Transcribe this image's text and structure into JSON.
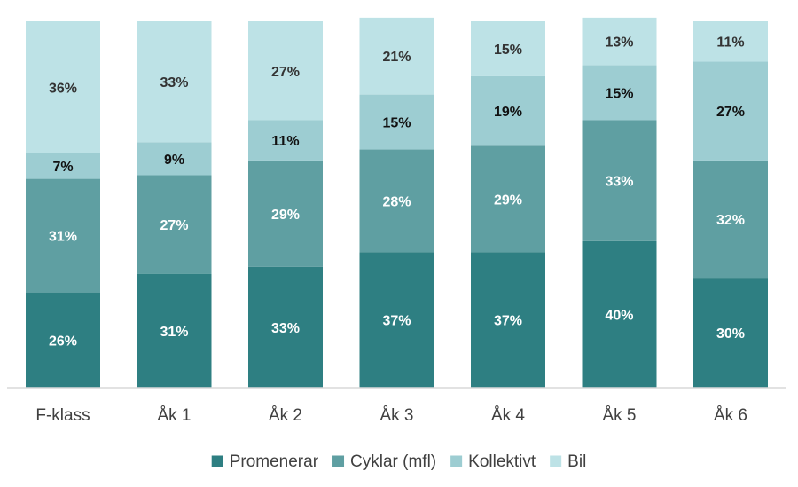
{
  "chart_data": {
    "type": "bar",
    "stacked": true,
    "percent": true,
    "categories": [
      "F-klass",
      "Åk 1",
      "Åk 2",
      "Åk 3",
      "Åk 4",
      "Åk 5",
      "Åk 6"
    ],
    "series": [
      {
        "name": "Promenerar",
        "color": "#2e7f82",
        "label_color": "#ffffff",
        "values": [
          26,
          31,
          33,
          37,
          37,
          40,
          30
        ]
      },
      {
        "name": "Cyklar (mfl)",
        "color": "#5f9fa2",
        "label_color": "#ffffff",
        "values": [
          31,
          27,
          29,
          28,
          29,
          33,
          32
        ]
      },
      {
        "name": "Kollektivt",
        "color": "#9dcdd2",
        "label_color": "#111111",
        "values": [
          7,
          9,
          11,
          15,
          19,
          15,
          27
        ]
      },
      {
        "name": "Bil",
        "color": "#bde2e6",
        "label_color": "#333333",
        "values": [
          36,
          33,
          27,
          21,
          15,
          13,
          11
        ]
      }
    ],
    "value_suffix": "%",
    "ylim": [
      0,
      100
    ],
    "grid": false,
    "legend_position": "bottom"
  }
}
